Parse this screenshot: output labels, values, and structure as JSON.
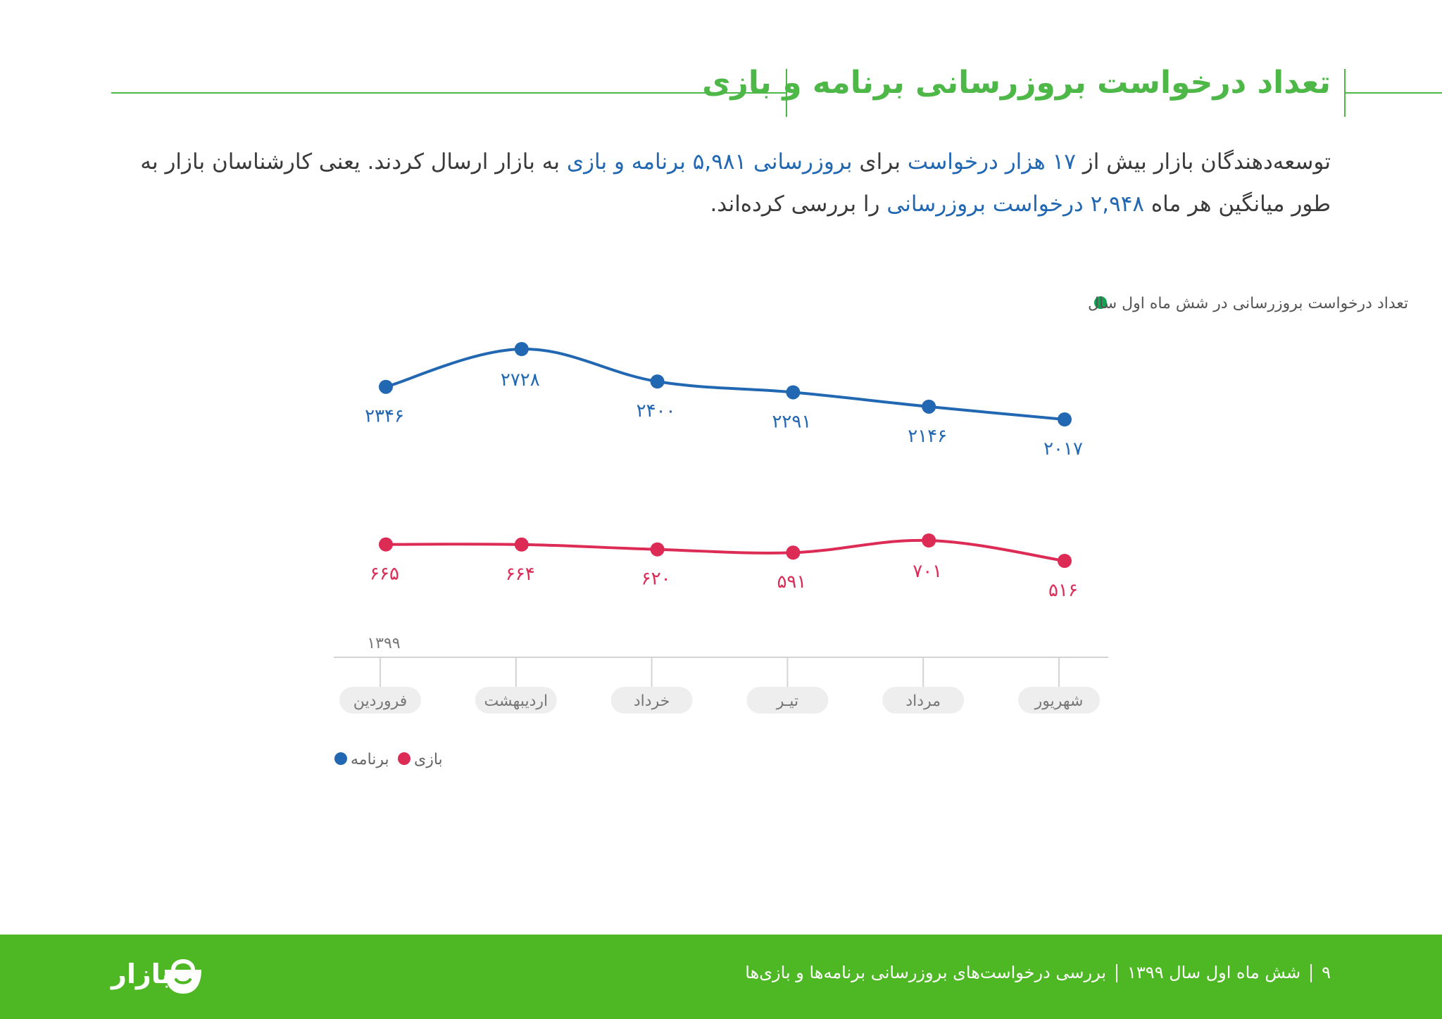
{
  "header": {
    "title": "تعداد درخواست بروزرسانی برنامه و بازی"
  },
  "intro": {
    "p1": "توسعه‌دهندگان بازار بیش از ",
    "h1": "۱۷ هزار درخواست",
    "p2": " برای ",
    "h2": "بروزرسانی ۵,۹۸۱ برنامه و بازی",
    "p3": " به بازار ارسال کردند. یعنی کارشناسان بازار به طور میانگین هر ماه ",
    "h3": "۲,۹۴۸ درخواست بروزرسانی",
    "p4": " را بررسی کرده‌اند."
  },
  "chart_data": {
    "type": "line",
    "title": "تعداد درخواست بروزرسانی در شش ماه اول سال",
    "title_dot_color": "#12a150",
    "categories": [
      "فروردین",
      "اردیبهشت",
      "خرداد",
      "تیـر",
      "مرداد",
      "شهریور"
    ],
    "year_label": "۱۳۹۹",
    "series": [
      {
        "name": "برنامه",
        "color": "#2167b2",
        "values": [
          2346,
          2728,
          2400,
          2291,
          2146,
          2017
        ],
        "labels": [
          "۲۳۴۶",
          "۲۷۲۸",
          "۲۴۰۰",
          "۲۲۹۱",
          "۲۱۴۶",
          "۲۰۱۷"
        ]
      },
      {
        "name": "بازی",
        "color": "#dc2b55",
        "values": [
          665,
          664,
          620,
          591,
          701,
          516
        ],
        "labels": [
          "۶۶۵",
          "۶۶۴",
          "۶۲۰",
          "۵۹۱",
          "۷۰۱",
          "۵۱۶"
        ]
      }
    ],
    "legend_position": "bottom-left",
    "grid": false
  },
  "footer": {
    "page_number": "۹",
    "period": "شش ماه اول سال ۱۳۹۹",
    "report_title": "بررسی درخواست‌های بروزرسانی برنامه‌ها و بازی‌ها",
    "brand": "بازار",
    "brand_icon": "shopping-bag-icon"
  }
}
